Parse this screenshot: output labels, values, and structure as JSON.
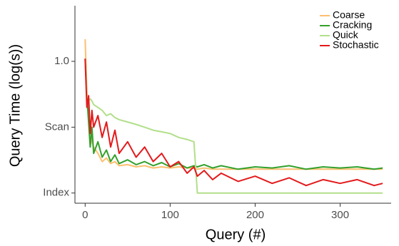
{
  "chart_data": {
    "type": "line",
    "x_label": "Query (#)",
    "y_label": "Query Time (log(s))",
    "x": [
      0,
      2,
      4,
      6,
      8,
      10,
      15,
      20,
      25,
      30,
      35,
      40,
      50,
      60,
      70,
      80,
      90,
      100,
      110,
      120,
      128,
      132,
      140,
      150,
      160,
      180,
      200,
      220,
      240,
      260,
      280,
      300,
      320,
      340,
      350
    ],
    "series": [
      {
        "name": "Coarse",
        "color": "#fdbf6f",
        "values": [
          2.17,
          0.35,
          0.2,
          0.09,
          0.06,
          0.05,
          0.04,
          0.03,
          0.034,
          0.028,
          0.03,
          0.026,
          0.027,
          0.025,
          0.026,
          0.024,
          0.025,
          0.024,
          0.025,
          0.024,
          0.024,
          0.023,
          0.024,
          0.023,
          0.023,
          0.023,
          0.023,
          0.023,
          0.023,
          0.023,
          0.023,
          0.023,
          0.023,
          0.023,
          0.023
        ]
      },
      {
        "name": "Cracking",
        "color": "#33a02c",
        "values": [
          1.08,
          0.3,
          0.12,
          0.05,
          0.1,
          0.04,
          0.06,
          0.035,
          0.045,
          0.03,
          0.038,
          0.028,
          0.032,
          0.027,
          0.03,
          0.026,
          0.029,
          0.025,
          0.028,
          0.024,
          0.026,
          0.025,
          0.027,
          0.024,
          0.026,
          0.023,
          0.025,
          0.024,
          0.026,
          0.023,
          0.025,
          0.024,
          0.025,
          0.023,
          0.024
        ]
      },
      {
        "name": "Quick",
        "color": "#b2df8a",
        "values": [
          1.0,
          0.3,
          0.25,
          0.27,
          0.25,
          0.22,
          0.2,
          0.18,
          0.15,
          0.16,
          0.14,
          0.13,
          0.12,
          0.11,
          0.1,
          0.09,
          0.085,
          0.08,
          0.07,
          0.065,
          0.06,
          0.01,
          0.01,
          0.01,
          0.01,
          0.01,
          0.01,
          0.01,
          0.01,
          0.01,
          0.01,
          0.01,
          0.01,
          0.01,
          0.01
        ]
      },
      {
        "name": "Stochastic",
        "color": "#e31a1c",
        "values": [
          1.1,
          0.2,
          0.3,
          0.08,
          0.18,
          0.1,
          0.15,
          0.07,
          0.12,
          0.05,
          0.09,
          0.04,
          0.06,
          0.035,
          0.05,
          0.03,
          0.04,
          0.025,
          0.03,
          0.02,
          0.025,
          0.018,
          0.022,
          0.016,
          0.02,
          0.015,
          0.018,
          0.014,
          0.017,
          0.013,
          0.016,
          0.014,
          0.016,
          0.013,
          0.014
        ]
      }
    ],
    "xlim": [
      -12,
      360
    ],
    "xticks": [
      0,
      100,
      200,
      300
    ],
    "ylim": [
      0.007,
      7
    ],
    "y_log": true,
    "yticks": [
      {
        "value": 0.01,
        "label": "Index"
      },
      {
        "value": 0.1,
        "label": "Scan"
      },
      {
        "value": 1,
        "label": "1.0"
      }
    ],
    "legend": "top-right"
  }
}
